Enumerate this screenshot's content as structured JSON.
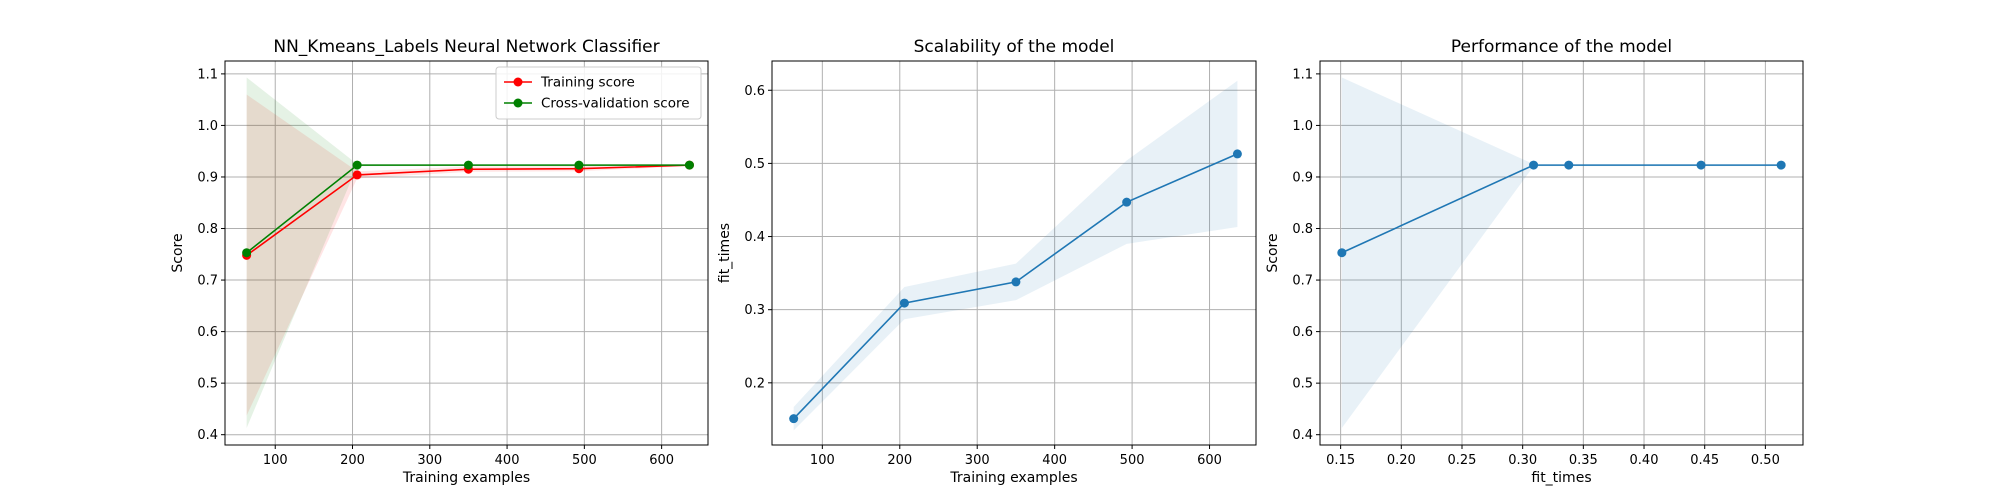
{
  "chart_data": [
    {
      "type": "line",
      "title": "NN_Kmeans_Labels Neural Network Classifier",
      "xlabel": "Training examples",
      "ylabel": "Score",
      "xlim": [
        35,
        660
      ],
      "ylim": [
        0.38,
        1.125
      ],
      "xticks": [
        100,
        200,
        300,
        400,
        500,
        600
      ],
      "yticks": [
        0.4,
        0.5,
        0.6,
        0.7,
        0.8,
        0.9,
        1.0,
        1.1
      ],
      "xtick_labels": [
        "100",
        "200",
        "300",
        "400",
        "500",
        "600"
      ],
      "ytick_labels": [
        "0.4",
        "0.5",
        "0.6",
        "0.7",
        "0.8",
        "0.9",
        "1.0",
        "1.1"
      ],
      "grid": true,
      "legend": "top-right",
      "x": [
        63,
        206,
        350,
        493,
        636
      ],
      "series": [
        {
          "name": "Training score",
          "color": "#ff0000",
          "values": [
            0.748,
            0.904,
            0.915,
            0.916,
            0.923
          ],
          "band_low": [
            0.437,
            0.897,
            0.91,
            0.911,
            0.921
          ],
          "band_high": [
            1.06,
            0.911,
            0.92,
            0.921,
            0.925
          ],
          "band_color": "#ff0000"
        },
        {
          "name": "Cross-validation score",
          "color": "#008000",
          "values": [
            0.753,
            0.923,
            0.923,
            0.923,
            0.923
          ],
          "band_low": [
            0.413,
            0.921,
            0.921,
            0.921,
            0.921
          ],
          "band_high": [
            1.093,
            0.925,
            0.925,
            0.925,
            0.925
          ],
          "band_color": "#008000"
        }
      ]
    },
    {
      "type": "line",
      "title": "Scalability of the model",
      "xlabel": "Training examples",
      "ylabel": "fit_times",
      "xlim": [
        35,
        660
      ],
      "ylim": [
        0.115,
        0.64
      ],
      "xticks": [
        100,
        200,
        300,
        400,
        500,
        600
      ],
      "yticks": [
        0.2,
        0.3,
        0.4,
        0.5,
        0.6
      ],
      "xtick_labels": [
        "100",
        "200",
        "300",
        "400",
        "500",
        "600"
      ],
      "ytick_labels": [
        "0.2",
        "0.3",
        "0.4",
        "0.5",
        "0.6"
      ],
      "grid": true,
      "x": [
        63,
        206,
        350,
        493,
        636
      ],
      "series": [
        {
          "color": "#1f77b4",
          "values": [
            0.151,
            0.309,
            0.338,
            0.447,
            0.513
          ],
          "band_low": [
            0.135,
            0.287,
            0.313,
            0.39,
            0.413
          ],
          "band_high": [
            0.167,
            0.331,
            0.363,
            0.504,
            0.613
          ],
          "band_color": "#1f77b4"
        }
      ]
    },
    {
      "type": "line",
      "title": "Performance of the model",
      "xlabel": "fit_times",
      "ylabel": "Score",
      "xlim": [
        0.133,
        0.531
      ],
      "ylim": [
        0.38,
        1.125
      ],
      "xticks": [
        0.15,
        0.2,
        0.25,
        0.3,
        0.35,
        0.4,
        0.45,
        0.5
      ],
      "yticks": [
        0.4,
        0.5,
        0.6,
        0.7,
        0.8,
        0.9,
        1.0,
        1.1
      ],
      "xtick_labels": [
        "0.15",
        "0.20",
        "0.25",
        "0.30",
        "0.35",
        "0.40",
        "0.45",
        "0.50"
      ],
      "ytick_labels": [
        "0.4",
        "0.5",
        "0.6",
        "0.7",
        "0.8",
        "0.9",
        "1.0",
        "1.1"
      ],
      "grid": true,
      "x": [
        0.151,
        0.309,
        0.338,
        0.447,
        0.513
      ],
      "series": [
        {
          "color": "#1f77b4",
          "values": [
            0.753,
            0.923,
            0.923,
            0.923,
            0.923
          ],
          "band_low": [
            0.413,
            0.921,
            0.921,
            0.921,
            0.921
          ],
          "band_high": [
            1.093,
            0.925,
            0.925,
            0.925,
            0.925
          ],
          "band_color": "#1f77b4"
        }
      ]
    }
  ]
}
